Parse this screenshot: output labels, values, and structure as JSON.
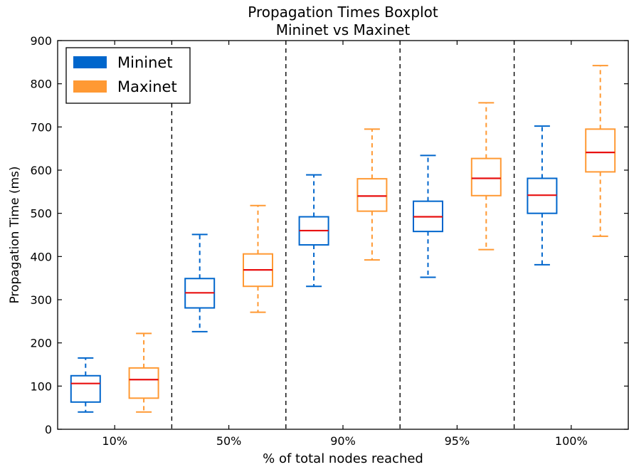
{
  "chart_data": {
    "type": "boxplot",
    "title": "Propagation Times Boxplot",
    "subtitle": "Mininet vs Maxinet",
    "xlabel": "% of total nodes reached",
    "ylabel": "Propagation Time (ms)",
    "ylim": [
      0,
      900
    ],
    "yticks": [
      0,
      100,
      200,
      300,
      400,
      500,
      600,
      700,
      800,
      900
    ],
    "categories": [
      "10%",
      "50%",
      "90%",
      "95%",
      "100%"
    ],
    "grid": false,
    "legend_position": "top-left",
    "series": [
      {
        "name": "Mininet",
        "color": "#0066cc",
        "boxes": [
          {
            "whisker_low": 40,
            "q1": 63,
            "median": 106,
            "q3": 124,
            "whisker_high": 165
          },
          {
            "whisker_low": 226,
            "q1": 281,
            "median": 316,
            "q3": 349,
            "whisker_high": 451
          },
          {
            "whisker_low": 331,
            "q1": 427,
            "median": 460,
            "q3": 492,
            "whisker_high": 589
          },
          {
            "whisker_low": 352,
            "q1": 458,
            "median": 492,
            "q3": 528,
            "whisker_high": 634
          },
          {
            "whisker_low": 381,
            "q1": 500,
            "median": 542,
            "q3": 581,
            "whisker_high": 702
          }
        ]
      },
      {
        "name": "Maxinet",
        "color": "#ff9933",
        "boxes": [
          {
            "whisker_low": 40,
            "q1": 72,
            "median": 115,
            "q3": 142,
            "whisker_high": 222
          },
          {
            "whisker_low": 271,
            "q1": 331,
            "median": 369,
            "q3": 406,
            "whisker_high": 518
          },
          {
            "whisker_low": 392,
            "q1": 505,
            "median": 540,
            "q3": 580,
            "whisker_high": 695
          },
          {
            "whisker_low": 416,
            "q1": 541,
            "median": 581,
            "q3": 627,
            "whisker_high": 756
          },
          {
            "whisker_low": 447,
            "q1": 596,
            "median": 641,
            "q3": 695,
            "whisker_high": 842
          }
        ]
      }
    ],
    "median_color": "#e81010"
  }
}
